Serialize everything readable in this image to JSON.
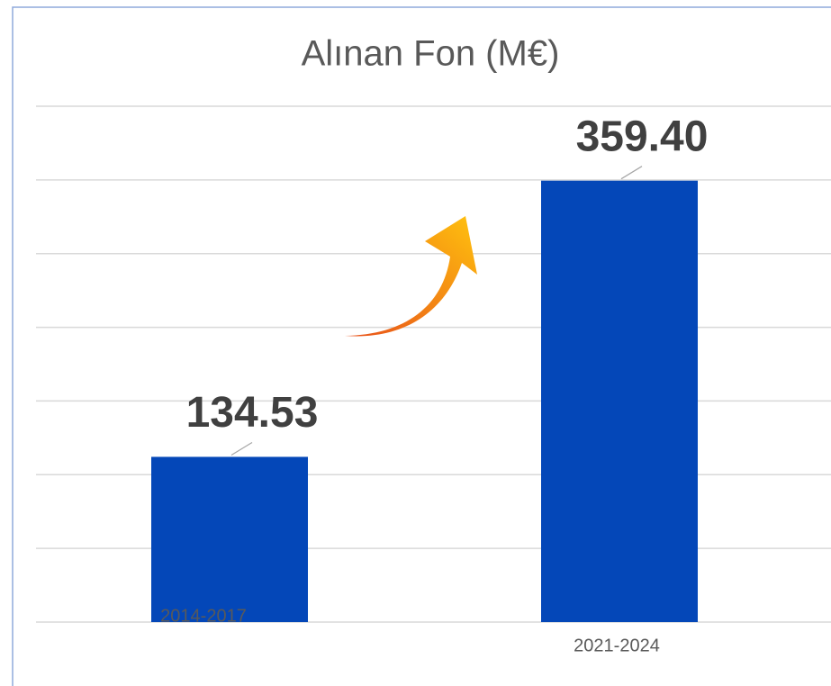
{
  "chart_data": {
    "type": "bar",
    "title": "Alınan Fon (M€)",
    "categories": [
      "2014-2017",
      "2021-2024"
    ],
    "values": [
      134.53,
      359.4
    ],
    "value_labels": [
      "134.53",
      "359.40"
    ],
    "color": "#0447b8",
    "ylim": [
      0,
      420
    ],
    "yticks": [
      0,
      60,
      120,
      180,
      240,
      300,
      360,
      420
    ],
    "grid": true
  }
}
